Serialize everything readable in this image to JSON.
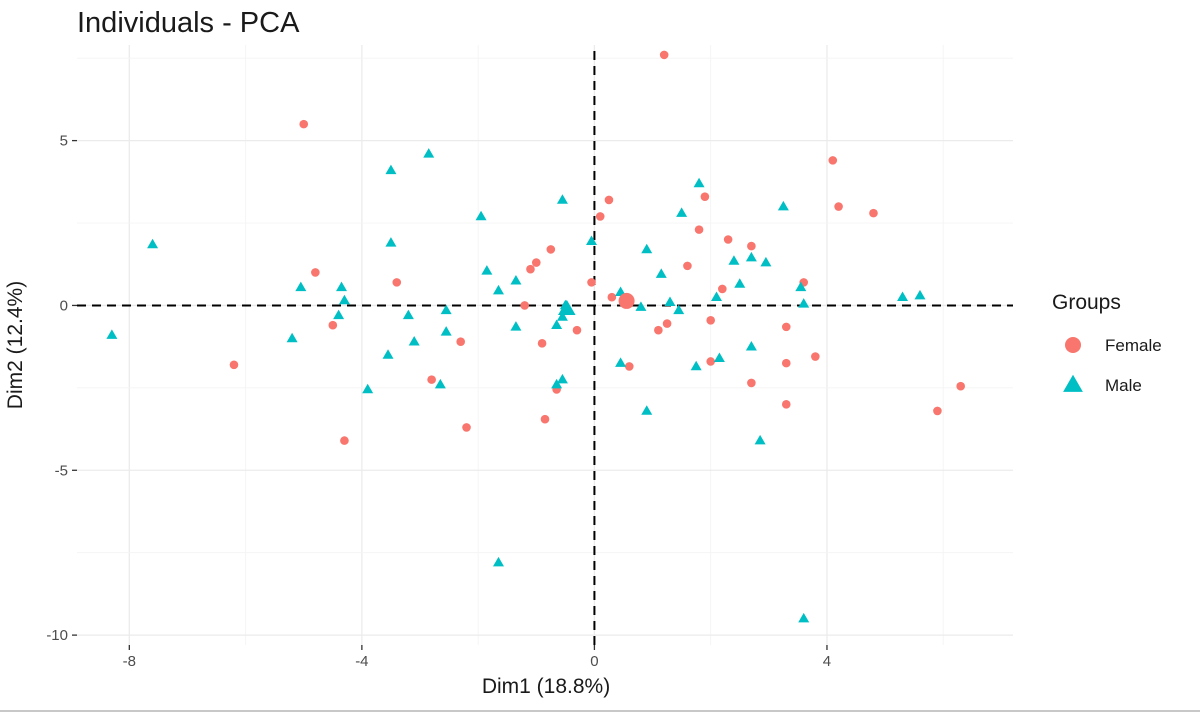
{
  "chart_data": {
    "type": "scatter",
    "title": "Individuals - PCA",
    "xlabel": "Dim1 (18.8%)",
    "ylabel": "Dim2 (12.4%)",
    "xlim": [
      -8.9,
      7.2
    ],
    "ylim": [
      -10.3,
      7.9
    ],
    "x_ticks": [
      -8,
      -4,
      0,
      4
    ],
    "y_ticks": [
      5,
      0,
      -5,
      -10
    ],
    "x_tick_labels": [
      "-8",
      "-4",
      "0",
      "4"
    ],
    "y_tick_labels": [
      "5",
      "0",
      "-5",
      "-10"
    ],
    "grid": true,
    "reference_lines": {
      "x": 0,
      "y": 0,
      "style": "dashed"
    },
    "legend": {
      "title": "Groups",
      "position": "right"
    },
    "series": [
      {
        "name": "Female",
        "color": "#F8766D",
        "shape": "circle",
        "points": [
          [
            -5.0,
            5.5
          ],
          [
            1.2,
            7.6
          ],
          [
            4.1,
            4.4
          ],
          [
            4.2,
            3.0
          ],
          [
            4.8,
            2.8
          ],
          [
            1.9,
            3.3
          ],
          [
            0.25,
            3.2
          ],
          [
            0.1,
            2.7
          ],
          [
            1.8,
            2.3
          ],
          [
            2.3,
            2.0
          ],
          [
            2.7,
            1.8
          ],
          [
            1.6,
            1.2
          ],
          [
            -0.75,
            1.7
          ],
          [
            -1.0,
            1.3
          ],
          [
            -1.1,
            1.1
          ],
          [
            -4.8,
            1.0
          ],
          [
            -3.4,
            0.7
          ],
          [
            3.6,
            0.7
          ],
          [
            2.2,
            0.5
          ],
          [
            0.3,
            0.25
          ],
          [
            0.55,
            0.1
          ],
          [
            0.6,
            0.15
          ],
          [
            -0.05,
            0.7
          ],
          [
            -1.2,
            0.0
          ],
          [
            -4.5,
            -0.6
          ],
          [
            -0.3,
            -0.75
          ],
          [
            1.1,
            -0.75
          ],
          [
            1.25,
            -0.55
          ],
          [
            2.0,
            -0.45
          ],
          [
            3.3,
            -0.65
          ],
          [
            -2.3,
            -1.1
          ],
          [
            -0.9,
            -1.15
          ],
          [
            -6.2,
            -1.8
          ],
          [
            0.6,
            -1.85
          ],
          [
            2.0,
            -1.7
          ],
          [
            3.3,
            -1.75
          ],
          [
            3.8,
            -1.55
          ],
          [
            -2.8,
            -2.25
          ],
          [
            -0.65,
            -2.55
          ],
          [
            2.7,
            -2.35
          ],
          [
            3.3,
            -3.0
          ],
          [
            -0.85,
            -3.45
          ],
          [
            -2.2,
            -3.7
          ],
          [
            -4.3,
            -4.1
          ],
          [
            5.9,
            -3.2
          ],
          [
            6.3,
            -2.45
          ]
        ]
      },
      {
        "name": "Male",
        "color": "#00BFC4",
        "shape": "triangle",
        "points": [
          [
            -2.85,
            4.6
          ],
          [
            -3.5,
            4.1
          ],
          [
            1.8,
            3.7
          ],
          [
            3.25,
            3.0
          ],
          [
            -0.55,
            3.2
          ],
          [
            1.5,
            2.8
          ],
          [
            -1.95,
            2.7
          ],
          [
            -0.05,
            1.95
          ],
          [
            -3.5,
            1.9
          ],
          [
            -7.6,
            1.85
          ],
          [
            0.9,
            1.7
          ],
          [
            2.4,
            1.35
          ],
          [
            2.7,
            1.45
          ],
          [
            2.95,
            1.3
          ],
          [
            -1.85,
            1.05
          ],
          [
            1.15,
            0.95
          ],
          [
            -1.35,
            0.75
          ],
          [
            2.5,
            0.65
          ],
          [
            -5.05,
            0.55
          ],
          [
            -4.35,
            0.55
          ],
          [
            3.55,
            0.55
          ],
          [
            -1.65,
            0.45
          ],
          [
            0.45,
            0.4
          ],
          [
            5.3,
            0.25
          ],
          [
            5.6,
            0.3
          ],
          [
            2.1,
            0.25
          ],
          [
            -4.3,
            0.15
          ],
          [
            1.3,
            0.1
          ],
          [
            3.6,
            0.05
          ],
          [
            -0.5,
            0.0
          ],
          [
            -0.45,
            -0.1
          ],
          [
            0.8,
            -0.05
          ],
          [
            1.45,
            -0.15
          ],
          [
            -2.55,
            -0.15
          ],
          [
            -4.4,
            -0.3
          ],
          [
            -3.2,
            -0.3
          ],
          [
            -0.55,
            -0.35
          ],
          [
            -0.65,
            -0.6
          ],
          [
            -1.35,
            -0.65
          ],
          [
            -2.55,
            -0.8
          ],
          [
            -5.2,
            -1.0
          ],
          [
            -3.1,
            -1.1
          ],
          [
            -8.3,
            -0.9
          ],
          [
            -3.55,
            -1.5
          ],
          [
            2.7,
            -1.25
          ],
          [
            0.45,
            -1.75
          ],
          [
            1.75,
            -1.85
          ],
          [
            2.15,
            -1.6
          ],
          [
            -0.55,
            -2.25
          ],
          [
            -0.65,
            -2.4
          ],
          [
            -2.65,
            -2.4
          ],
          [
            -3.9,
            -2.55
          ],
          [
            0.9,
            -3.2
          ],
          [
            2.85,
            -4.1
          ],
          [
            -1.65,
            -7.8
          ],
          [
            3.6,
            -9.5
          ]
        ]
      }
    ]
  }
}
